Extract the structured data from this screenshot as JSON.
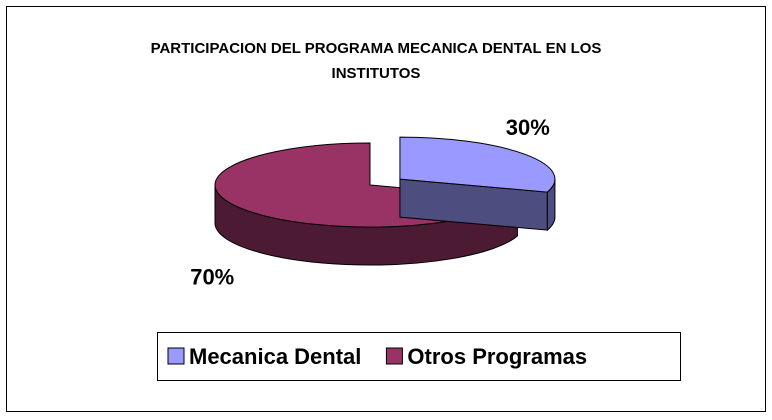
{
  "chart_data": {
    "type": "pie",
    "title": "PARTICIPACION DEL PROGRAMA MECANICA DENTAL EN LOS INSTITUTOS",
    "categories": [
      "Mecanica Dental",
      "Otros Programas"
    ],
    "values": [
      30,
      70
    ],
    "value_labels": [
      "30%",
      "70%"
    ],
    "colors": [
      "#9999ff",
      "#993366"
    ],
    "legend": "bottom"
  }
}
